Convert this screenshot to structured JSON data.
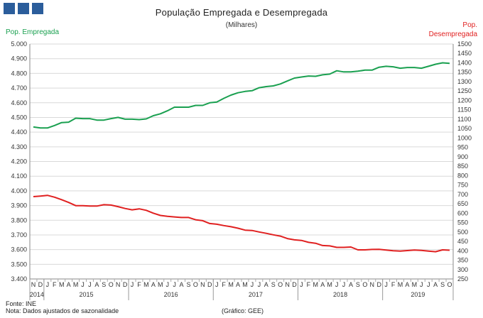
{
  "header": {
    "title": "População Empregada e Desempregada",
    "subtitle": "(Milhares)"
  },
  "axis_labels": {
    "left": "Pop. Empregada",
    "right_line1": "Pop.",
    "right_line2": "Desempregada"
  },
  "footer": {
    "source": "Fonte: INE",
    "note": "Nota: Dados ajustados de sazonalidade",
    "credit": "(Gráfico: GEE)"
  },
  "colors": {
    "employed": "#1aa050",
    "unemployed": "#e02020",
    "grid": "#d9d9d9",
    "logo": "#2b5d9b"
  },
  "chart_data": {
    "type": "line",
    "x_start": "2014-11",
    "months": [
      "N",
      "D",
      "J",
      "F",
      "M",
      "A",
      "M",
      "J",
      "J",
      "A",
      "S",
      "O",
      "N",
      "D",
      "J",
      "F",
      "M",
      "A",
      "M",
      "J",
      "J",
      "A",
      "S",
      "O",
      "N",
      "D",
      "J",
      "F",
      "M",
      "A",
      "M",
      "J",
      "J",
      "A",
      "S",
      "O",
      "N",
      "D",
      "J",
      "F",
      "M",
      "A",
      "M",
      "J",
      "J",
      "A",
      "S",
      "O",
      "N",
      "D",
      "J",
      "F",
      "M",
      "A",
      "M",
      "J",
      "J",
      "A",
      "S",
      "O"
    ],
    "years": [
      {
        "label": "2014",
        "start": 0,
        "end": 1
      },
      {
        "label": "2015",
        "start": 2,
        "end": 13
      },
      {
        "label": "2016",
        "start": 14,
        "end": 25
      },
      {
        "label": "2017",
        "start": 26,
        "end": 37
      },
      {
        "label": "2018",
        "start": 38,
        "end": 49
      },
      {
        "label": "2019",
        "start": 50,
        "end": 59
      }
    ],
    "left_axis": {
      "min": 3400,
      "max": 5000,
      "step": 100,
      "ticks": [
        "3.400",
        "3.500",
        "3.600",
        "3.700",
        "3.800",
        "3.900",
        "4.000",
        "4.100",
        "4.200",
        "4.300",
        "4.400",
        "4.500",
        "4.600",
        "4.700",
        "4.800",
        "4.900",
        "5.000"
      ]
    },
    "right_axis": {
      "min": 250,
      "max": 1500,
      "step": 50,
      "ticks": [
        "250",
        "300",
        "350",
        "400",
        "450",
        "500",
        "550",
        "600",
        "650",
        "700",
        "750",
        "800",
        "850",
        "900",
        "950",
        "1000",
        "1050",
        "1100",
        "1150",
        "1200",
        "1250",
        "1300",
        "1350",
        "1400",
        "1450",
        "1500"
      ]
    },
    "grid": true,
    "series": [
      {
        "name": "Pop. Empregada",
        "axis": "left",
        "values": [
          4435,
          4428,
          4428,
          4445,
          4465,
          4468,
          4495,
          4492,
          4492,
          4482,
          4482,
          4492,
          4500,
          4488,
          4488,
          4485,
          4490,
          4512,
          4525,
          4545,
          4570,
          4570,
          4570,
          4582,
          4582,
          4600,
          4605,
          4630,
          4652,
          4668,
          4677,
          4682,
          4702,
          4710,
          4715,
          4728,
          4748,
          4768,
          4775,
          4782,
          4780,
          4790,
          4795,
          4818,
          4810,
          4810,
          4815,
          4822,
          4822,
          4842,
          4848,
          4845,
          4835,
          4840,
          4840,
          4835,
          4848,
          4862,
          4872,
          4868
        ]
      },
      {
        "name": "Pop. Desempregada",
        "axis": "right",
        "values": [
          688,
          691,
          695,
          685,
          672,
          657,
          640,
          640,
          638,
          638,
          645,
          643,
          635,
          625,
          618,
          623,
          615,
          600,
          588,
          583,
          580,
          577,
          577,
          565,
          560,
          545,
          541,
          534,
          528,
          520,
          510,
          508,
          500,
          493,
          485,
          478,
          465,
          458,
          455,
          445,
          440,
          428,
          426,
          418,
          418,
          420,
          405,
          405,
          407,
          408,
          404,
          400,
          398,
          401,
          404,
          402,
          398,
          395,
          405,
          403
        ]
      }
    ]
  }
}
